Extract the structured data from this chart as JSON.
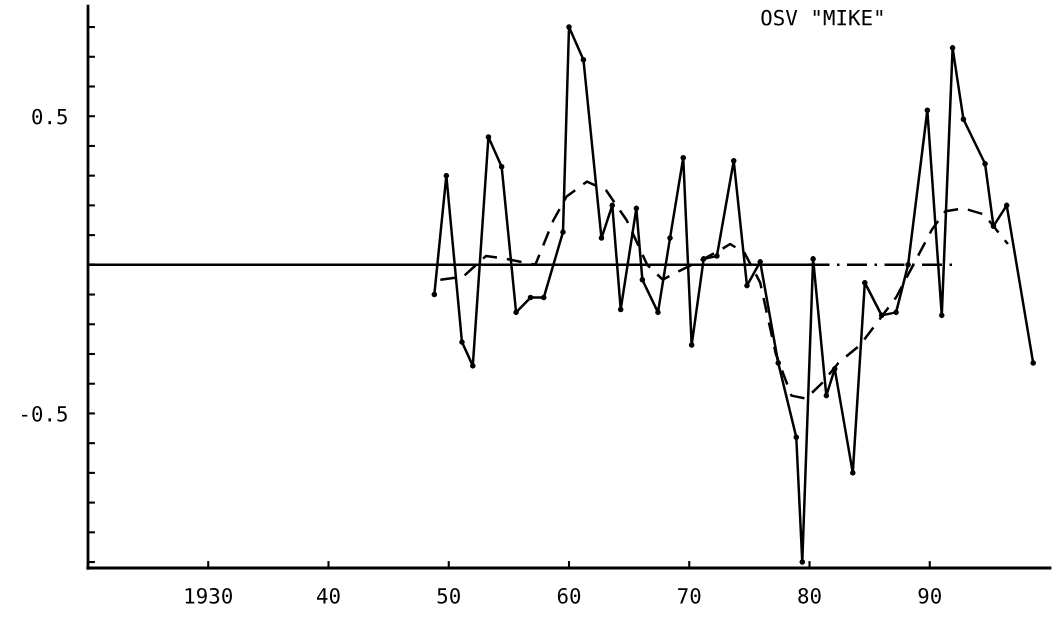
{
  "chart_data": {
    "type": "line",
    "title": "OSV \"MIKE\"",
    "xlim": [
      1920,
      2000
    ],
    "ylim": [
      -1.02,
      0.87
    ],
    "xticks": [
      {
        "value": 1930,
        "label": "1930"
      },
      {
        "value": 1940,
        "label": "40"
      },
      {
        "value": 1950,
        "label": "50"
      },
      {
        "value": 1960,
        "label": "60"
      },
      {
        "value": 1970,
        "label": "70"
      },
      {
        "value": 1980,
        "label": "80"
      },
      {
        "value": 1990,
        "label": "90"
      }
    ],
    "yticks": [
      {
        "value": -1.0,
        "label": null
      },
      {
        "value": -0.9,
        "label": null
      },
      {
        "value": -0.8,
        "label": null
      },
      {
        "value": -0.7,
        "label": null
      },
      {
        "value": -0.6,
        "label": null
      },
      {
        "value": -0.5,
        "label": "-0.5"
      },
      {
        "value": -0.4,
        "label": null
      },
      {
        "value": -0.3,
        "label": null
      },
      {
        "value": -0.2,
        "label": null
      },
      {
        "value": -0.1,
        "label": null
      },
      {
        "value": 0,
        "label": null
      },
      {
        "value": 0.1,
        "label": null
      },
      {
        "value": 0.2,
        "label": null
      },
      {
        "value": 0.3,
        "label": null
      },
      {
        "value": 0.4,
        "label": null
      },
      {
        "value": 0.5,
        "label": "0.5"
      },
      {
        "value": 0.6,
        "label": null
      },
      {
        "value": 0.7,
        "label": null
      },
      {
        "value": 0.8,
        "label": null
      }
    ],
    "grid": false,
    "legend": false,
    "series": [
      {
        "color": "#000000",
        "marker": "circle",
        "line_style": "solid",
        "x": [
          1948.8,
          1949.8,
          1951.1,
          1952.0,
          1953.3,
          1954.4,
          1955.6,
          1956.8,
          1957.9,
          1959.5,
          1960.0,
          1961.2,
          1962.7,
          1963.6,
          1964.3,
          1965.6,
          1966.1,
          1967.4,
          1968.4,
          1969.5,
          1970.2,
          1971.2,
          1972.3,
          1973.7,
          1974.8,
          1975.9,
          1977.4,
          1978.9,
          1979.4,
          1980.3,
          1981.4,
          1982.1,
          1983.6,
          1984.6,
          1986.0,
          1987.2,
          1988.2,
          1989.8,
          1991.0,
          1991.9,
          1992.8,
          1994.6,
          1995.3,
          1996.4,
          1998.6
        ],
        "values": [
          -0.1,
          0.3,
          -0.26,
          -0.34,
          0.43,
          0.33,
          -0.16,
          -0.11,
          -0.11,
          0.11,
          0.8,
          0.69,
          0.09,
          0.2,
          -0.15,
          0.19,
          -0.05,
          -0.16,
          0.09,
          0.36,
          -0.27,
          0.02,
          0.03,
          0.35,
          -0.07,
          0.01,
          -0.33,
          -0.58,
          -1.0,
          0.02,
          -0.44,
          -0.35,
          -0.7,
          -0.06,
          -0.17,
          -0.16,
          0.0,
          0.52,
          -0.17,
          0.73,
          0.49,
          0.34,
          0.13,
          0.2,
          -0.33
        ]
      },
      {
        "color": "#000000",
        "marker": "none",
        "line_style": "dashed",
        "x": [
          1949.3,
          1951.2,
          1953.1,
          1954.8,
          1957.2,
          1958.7,
          1959.8,
          1961.5,
          1963.1,
          1964.8,
          1966.5,
          1967.8,
          1969.2,
          1971.2,
          1972.6,
          1973.4,
          1974.6,
          1975.9,
          1977.2,
          1978.5,
          1979.7,
          1981.0,
          1982.4,
          1984.2,
          1985.7,
          1987.2,
          1988.5,
          1990.2,
          1991.3,
          1992.8,
          1994.5,
          1996.5
        ],
        "values": [
          -0.05,
          -0.04,
          0.03,
          0.02,
          0.0,
          0.15,
          0.23,
          0.28,
          0.25,
          0.15,
          0.0,
          -0.05,
          -0.02,
          0.02,
          0.05,
          0.07,
          0.04,
          -0.06,
          -0.3,
          -0.44,
          -0.45,
          -0.4,
          -0.33,
          -0.27,
          -0.19,
          -0.11,
          -0.01,
          0.12,
          0.18,
          0.19,
          0.17,
          0.07
        ]
      },
      {
        "color": "#000000",
        "marker": "none",
        "line_style": "solid",
        "x": [
          1920,
          1980
        ],
        "values": [
          0,
          0
        ]
      },
      {
        "color": "#000000",
        "marker": "none",
        "line_style": "dotted",
        "x": [
          1980,
          1992
        ],
        "values": [
          0,
          0
        ]
      }
    ]
  }
}
